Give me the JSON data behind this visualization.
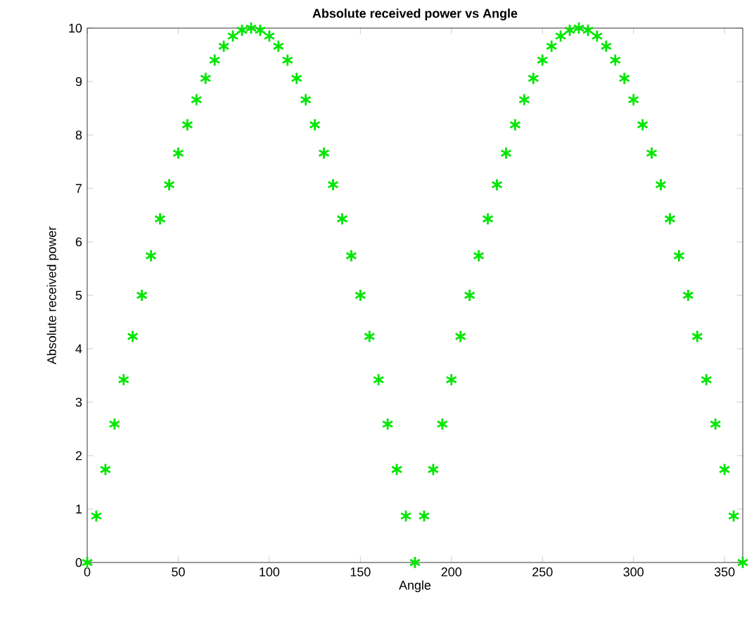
{
  "chart_data": {
    "type": "scatter",
    "title": "Absolute received power vs Angle",
    "xlabel": "Angle",
    "ylabel": "Absolute received power",
    "x": [
      0,
      5,
      10,
      15,
      20,
      25,
      30,
      35,
      40,
      45,
      50,
      55,
      60,
      65,
      70,
      75,
      80,
      85,
      90,
      95,
      100,
      105,
      110,
      115,
      120,
      125,
      130,
      135,
      140,
      145,
      150,
      155,
      160,
      165,
      170,
      175,
      180,
      185,
      190,
      195,
      200,
      205,
      210,
      215,
      220,
      225,
      230,
      235,
      240,
      245,
      250,
      255,
      260,
      265,
      270,
      275,
      280,
      285,
      290,
      295,
      300,
      305,
      310,
      315,
      320,
      325,
      330,
      335,
      340,
      345,
      350,
      355,
      360
    ],
    "values": [
      0,
      0.87,
      1.74,
      2.59,
      3.42,
      4.23,
      5.0,
      5.74,
      6.43,
      7.07,
      7.66,
      8.19,
      8.66,
      9.06,
      9.4,
      9.66,
      9.85,
      9.96,
      10,
      9.96,
      9.85,
      9.66,
      9.4,
      9.06,
      8.66,
      8.19,
      7.66,
      7.07,
      6.43,
      5.74,
      5.0,
      4.23,
      3.42,
      2.59,
      1.74,
      0.87,
      0,
      0.87,
      1.74,
      2.59,
      3.42,
      4.23,
      5.0,
      5.74,
      6.43,
      7.07,
      7.66,
      8.19,
      8.66,
      9.06,
      9.4,
      9.66,
      9.85,
      9.96,
      10,
      9.96,
      9.85,
      9.66,
      9.4,
      9.06,
      8.66,
      8.19,
      7.66,
      7.07,
      6.43,
      5.74,
      5.0,
      4.23,
      3.42,
      2.59,
      1.74,
      0.87,
      0
    ],
    "color": "#00e600",
    "marker": "cross",
    "xlim": [
      0,
      360
    ],
    "ylim": [
      0,
      10
    ],
    "xticks": [
      0,
      50,
      100,
      150,
      200,
      250,
      300,
      350
    ],
    "yticks": [
      0,
      1,
      2,
      3,
      4,
      5,
      6,
      7,
      8,
      9,
      10
    ],
    "grid": false
  }
}
